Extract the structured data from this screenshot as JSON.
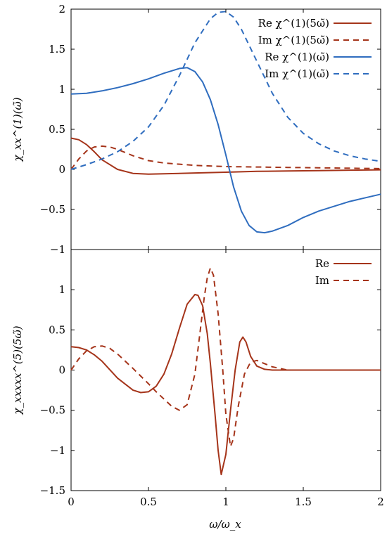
{
  "colors": {
    "red": "#a5341a",
    "blue": "#2f6dbf"
  },
  "xlabel": "ω/ω_x",
  "chart_data": [
    {
      "type": "line",
      "ylabel": "χ_xx^(1)(ω̃)",
      "xlim": [
        0,
        2
      ],
      "ylim": [
        -1,
        2
      ],
      "xticks": [],
      "yticks": [
        -1,
        -0.5,
        0,
        0.5,
        1,
        1.5,
        2
      ],
      "ytick_labels": [
        "−1",
        "−0.5",
        "0",
        "0.5",
        "1",
        "1.5",
        "2"
      ],
      "legend_position": "top-right",
      "series": [
        {
          "name": "Re χ^(1)(5ω̃)",
          "color": "red",
          "style": "solid",
          "x": [
            0,
            0.05,
            0.1,
            0.15,
            0.2,
            0.3,
            0.4,
            0.5,
            0.6,
            0.8,
            1.0,
            1.2,
            1.4,
            1.6,
            1.8,
            2.0
          ],
          "y": [
            0.39,
            0.37,
            0.31,
            0.22,
            0.12,
            0.0,
            -0.05,
            -0.06,
            -0.055,
            -0.045,
            -0.035,
            -0.025,
            -0.02,
            -0.015,
            -0.01,
            -0.005
          ]
        },
        {
          "name": "Im χ^(1)(5ω̃)",
          "color": "red",
          "style": "dashed",
          "x": [
            0,
            0.05,
            0.1,
            0.15,
            0.2,
            0.25,
            0.3,
            0.4,
            0.5,
            0.6,
            0.8,
            1.0,
            1.2,
            1.4,
            1.6,
            1.8,
            2.0
          ],
          "y": [
            0.0,
            0.13,
            0.23,
            0.28,
            0.29,
            0.28,
            0.25,
            0.17,
            0.11,
            0.08,
            0.05,
            0.035,
            0.03,
            0.025,
            0.02,
            0.015,
            0.01
          ]
        },
        {
          "name": "Re χ^(1)(ω̃)",
          "color": "blue",
          "style": "solid",
          "x": [
            0,
            0.1,
            0.2,
            0.3,
            0.4,
            0.5,
            0.6,
            0.7,
            0.75,
            0.8,
            0.85,
            0.9,
            0.95,
            1.0,
            1.05,
            1.1,
            1.15,
            1.2,
            1.25,
            1.3,
            1.4,
            1.5,
            1.6,
            1.8,
            2.0
          ],
          "y": [
            0.94,
            0.95,
            0.98,
            1.02,
            1.07,
            1.13,
            1.2,
            1.26,
            1.27,
            1.22,
            1.09,
            0.87,
            0.56,
            0.18,
            -0.22,
            -0.52,
            -0.7,
            -0.78,
            -0.79,
            -0.77,
            -0.7,
            -0.6,
            -0.52,
            -0.4,
            -0.31
          ]
        },
        {
          "name": "Im χ^(1)(ω̃)",
          "color": "blue",
          "style": "dashed",
          "x": [
            0,
            0.1,
            0.2,
            0.3,
            0.4,
            0.5,
            0.6,
            0.7,
            0.8,
            0.9,
            0.95,
            1.0,
            1.05,
            1.1,
            1.2,
            1.3,
            1.4,
            1.5,
            1.6,
            1.7,
            1.8,
            1.9,
            2.0
          ],
          "y": [
            0.0,
            0.06,
            0.13,
            0.22,
            0.35,
            0.53,
            0.8,
            1.17,
            1.58,
            1.88,
            1.96,
            1.97,
            1.9,
            1.75,
            1.35,
            0.95,
            0.65,
            0.45,
            0.32,
            0.23,
            0.17,
            0.13,
            0.1
          ]
        }
      ]
    },
    {
      "type": "line",
      "ylabel": "χ_xxxxx^(5)(5ω̃)",
      "xlim": [
        0,
        2
      ],
      "ylim": [
        -1.5,
        1.5
      ],
      "xticks": [
        0,
        0.5,
        1,
        1.5,
        2
      ],
      "xtick_labels": [
        "0",
        "0.5",
        "1",
        "1.5",
        "2"
      ],
      "yticks": [
        -1.5,
        -1,
        -0.5,
        0,
        0.5,
        1
      ],
      "ytick_labels": [
        "−1.5",
        "−1",
        "−0.5",
        "0",
        "0.5",
        "1"
      ],
      "legend_position": "top-right",
      "series": [
        {
          "name": "Re",
          "color": "red",
          "style": "solid",
          "x": [
            0,
            0.05,
            0.1,
            0.15,
            0.2,
            0.3,
            0.4,
            0.45,
            0.5,
            0.55,
            0.6,
            0.65,
            0.7,
            0.75,
            0.8,
            0.82,
            0.85,
            0.88,
            0.9,
            0.93,
            0.95,
            0.97,
            1.0,
            1.03,
            1.06,
            1.09,
            1.11,
            1.13,
            1.16,
            1.2,
            1.25,
            1.3,
            1.4,
            1.6,
            2.0
          ],
          "y": [
            0.29,
            0.28,
            0.25,
            0.19,
            0.11,
            -0.1,
            -0.25,
            -0.28,
            -0.27,
            -0.2,
            -0.05,
            0.2,
            0.52,
            0.82,
            0.94,
            0.93,
            0.8,
            0.45,
            0.08,
            -0.55,
            -1.0,
            -1.3,
            -1.05,
            -0.5,
            0.0,
            0.35,
            0.41,
            0.35,
            0.17,
            0.05,
            0.01,
            0.0,
            0.0,
            0.0,
            0.0
          ]
        },
        {
          "name": "Im",
          "color": "red",
          "style": "dashed",
          "x": [
            0,
            0.05,
            0.1,
            0.15,
            0.2,
            0.25,
            0.3,
            0.4,
            0.5,
            0.55,
            0.6,
            0.65,
            0.7,
            0.75,
            0.8,
            0.83,
            0.86,
            0.88,
            0.9,
            0.92,
            0.95,
            0.98,
            1.0,
            1.03,
            1.05,
            1.08,
            1.12,
            1.16,
            1.2,
            1.3,
            1.4,
            1.6,
            2.0
          ],
          "y": [
            0.0,
            0.14,
            0.24,
            0.29,
            0.3,
            0.27,
            0.2,
            0.02,
            -0.17,
            -0.27,
            -0.36,
            -0.45,
            -0.5,
            -0.43,
            -0.05,
            0.42,
            0.9,
            1.15,
            1.27,
            1.18,
            0.7,
            0.0,
            -0.55,
            -0.95,
            -0.85,
            -0.45,
            -0.05,
            0.1,
            0.12,
            0.04,
            0.0,
            0.0,
            0.0
          ]
        }
      ]
    }
  ]
}
